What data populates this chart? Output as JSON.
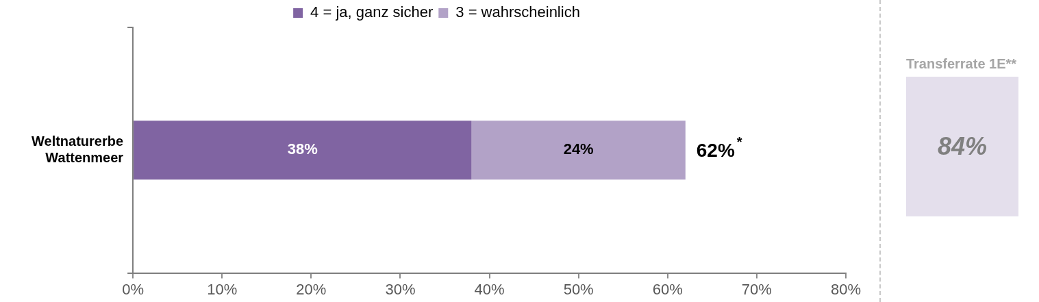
{
  "chart_data": [
    {
      "type": "bar",
      "orientation": "horizontal",
      "stacked": true,
      "categories": [
        "Weltnaturerbe Wattenmeer"
      ],
      "series": [
        {
          "name": "4 = ja, ganz sicher",
          "color": "#8064a2",
          "values": [
            38
          ],
          "value_labels": [
            "38%"
          ]
        },
        {
          "name": "3 = wahrscheinlich",
          "color": "#b2a2c7",
          "values": [
            24
          ],
          "value_labels": [
            "24%"
          ]
        }
      ],
      "totals": [
        "62%$^{*}$"
      ],
      "xlim": [
        0,
        80
      ],
      "xticks": [
        {
          "value": 0,
          "label": "0%"
        },
        {
          "value": 10,
          "label": "10%"
        },
        {
          "value": 20,
          "label": "20%"
        },
        {
          "value": 30,
          "label": "30%"
        },
        {
          "value": 40,
          "label": "40%"
        },
        {
          "value": 50,
          "label": "50%"
        },
        {
          "value": 60,
          "label": "60%"
        },
        {
          "value": 70,
          "label": "70%"
        },
        {
          "value": 80,
          "label": "80%"
        }
      ],
      "grid": false,
      "legend": "top"
    },
    {
      "type": "other",
      "title": "Transferrate 1E**",
      "annotations": [
        "84%"
      ],
      "color": "#e4dfec"
    }
  ]
}
